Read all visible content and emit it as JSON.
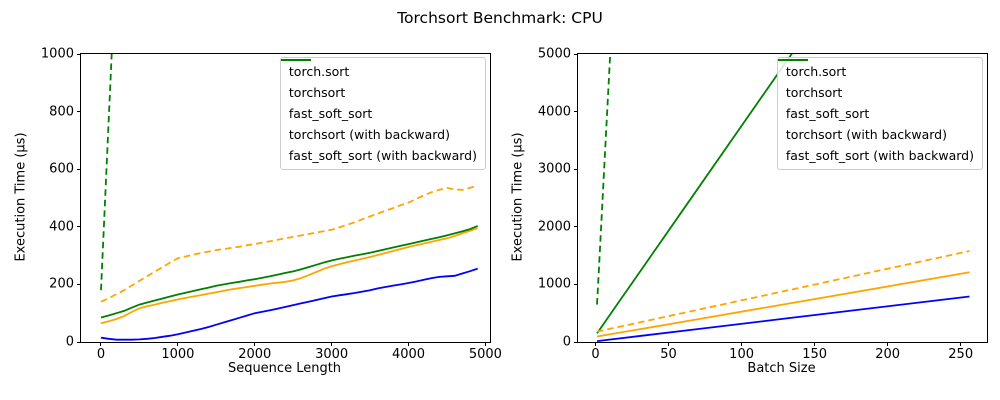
{
  "suptitle": "Torchsort Benchmark: CPU",
  "colors": {
    "torch_sort": "#0000ff",
    "torchsort": "#ffa500",
    "fast_soft_sort": "#008000",
    "axis": "#000000",
    "legend_border": "#cccccc"
  },
  "chart_data": [
    {
      "type": "line",
      "xlabel": "Sequence Length",
      "ylabel": "Execution Time (µs)",
      "xlim": [
        -260,
        5060
      ],
      "ylim": [
        0,
        1000
      ],
      "xticks": [
        0,
        1000,
        2000,
        3000,
        4000,
        5000
      ],
      "yticks": [
        0,
        200,
        400,
        600,
        800,
        1000
      ],
      "grid": false,
      "legend_position": "upper right",
      "x": [
        0,
        100,
        200,
        300,
        400,
        500,
        600,
        700,
        800,
        900,
        1000,
        1100,
        1200,
        1300,
        1400,
        1500,
        1600,
        1700,
        1800,
        1900,
        2000,
        2100,
        2200,
        2300,
        2400,
        2500,
        2600,
        2700,
        2800,
        2900,
        3000,
        3100,
        3200,
        3300,
        3400,
        3500,
        3600,
        3700,
        3800,
        3900,
        4000,
        4100,
        4200,
        4300,
        4400,
        4500,
        4600,
        4700,
        4800,
        4900
      ],
      "series": [
        {
          "name": "torch.sort",
          "color": "#0000ff",
          "style": "solid",
          "y": [
            15,
            11,
            8,
            8,
            8,
            9,
            11,
            14,
            18,
            22,
            27,
            33,
            39,
            45,
            52,
            60,
            68,
            76,
            84,
            92,
            100,
            105,
            110,
            116,
            122,
            128,
            134,
            140,
            146,
            152,
            158,
            162,
            166,
            170,
            175,
            180,
            186,
            191,
            196,
            200,
            205,
            210,
            216,
            222,
            226,
            228,
            230,
            238,
            246,
            255
          ]
        },
        {
          "name": "torchsort",
          "color": "#ffa500",
          "style": "solid",
          "y": [
            65,
            72,
            80,
            90,
            104,
            117,
            124,
            130,
            136,
            142,
            148,
            153,
            158,
            163,
            168,
            173,
            178,
            183,
            187,
            191,
            195,
            199,
            203,
            206,
            209,
            214,
            222,
            232,
            243,
            254,
            263,
            270,
            277,
            283,
            289,
            295,
            302,
            309,
            316,
            323,
            330,
            336,
            342,
            348,
            354,
            360,
            368,
            377,
            386,
            395
          ]
        },
        {
          "name": "fast_soft_sort",
          "color": "#008000",
          "style": "solid",
          "y": [
            85,
            92,
            100,
            108,
            119,
            130,
            137,
            144,
            151,
            158,
            165,
            171,
            177,
            183,
            189,
            195,
            200,
            205,
            209,
            214,
            218,
            223,
            228,
            234,
            240,
            245,
            252,
            260,
            268,
            276,
            283,
            289,
            294,
            300,
            305,
            310,
            316,
            322,
            328,
            334,
            340,
            346,
            352,
            358,
            364,
            370,
            377,
            384,
            392,
            403
          ]
        },
        {
          "name": "torchsort (with backward)",
          "color": "#ffa500",
          "style": "dashed",
          "y": [
            140,
            152,
            166,
            180,
            196,
            212,
            228,
            244,
            260,
            276,
            291,
            297,
            303,
            309,
            314,
            319,
            323,
            327,
            331,
            336,
            340,
            345,
            350,
            355,
            360,
            365,
            370,
            375,
            380,
            385,
            390,
            398,
            407,
            416,
            426,
            436,
            446,
            456,
            465,
            475,
            484,
            497,
            509,
            520,
            528,
            535,
            530,
            528,
            535,
            543
          ]
        },
        {
          "name": "fast_soft_sort (with backward)",
          "color": "#008000",
          "style": "dashed",
          "x": [
            0,
            100,
            200,
            300
          ],
          "y": [
            180,
            770,
            1360,
            1950
          ]
        }
      ]
    },
    {
      "type": "line",
      "xlabel": "Batch Size",
      "ylabel": "Execution Time (µs)",
      "xlim": [
        -12,
        268
      ],
      "ylim": [
        0,
        5000
      ],
      "xticks": [
        0,
        50,
        100,
        150,
        200,
        250
      ],
      "yticks": [
        0,
        1000,
        2000,
        3000,
        4000,
        5000
      ],
      "grid": false,
      "legend_position": "upper right",
      "x": [
        1,
        2,
        4,
        8,
        16,
        32,
        64,
        128,
        256
      ],
      "series": [
        {
          "name": "torch.sort",
          "color": "#0000ff",
          "style": "solid",
          "y": [
            15,
            18,
            24,
            36,
            61,
            109,
            206,
            401,
            790
          ]
        },
        {
          "name": "torchsort",
          "color": "#ffa500",
          "style": "solid",
          "y": [
            95,
            99,
            108,
            126,
            161,
            230,
            370,
            650,
            1210
          ]
        },
        {
          "name": "fast_soft_sort",
          "color": "#008000",
          "style": "solid",
          "y": [
            150,
            186,
            259,
            405,
            696,
            1278,
            2443,
            4772,
            9430
          ]
        },
        {
          "name": "torchsort (with backward)",
          "color": "#ffa500",
          "style": "dashed",
          "y": [
            180,
            185,
            196,
            218,
            262,
            350,
            526,
            877,
            1580
          ]
        },
        {
          "name": "fast_soft_sort (with backward)",
          "color": "#008000",
          "style": "dashed",
          "x": [
            1,
            2,
            4,
            8,
            16,
            32
          ],
          "y": [
            650,
            1130,
            2090,
            4010,
            7850,
            15530
          ]
        }
      ]
    }
  ]
}
